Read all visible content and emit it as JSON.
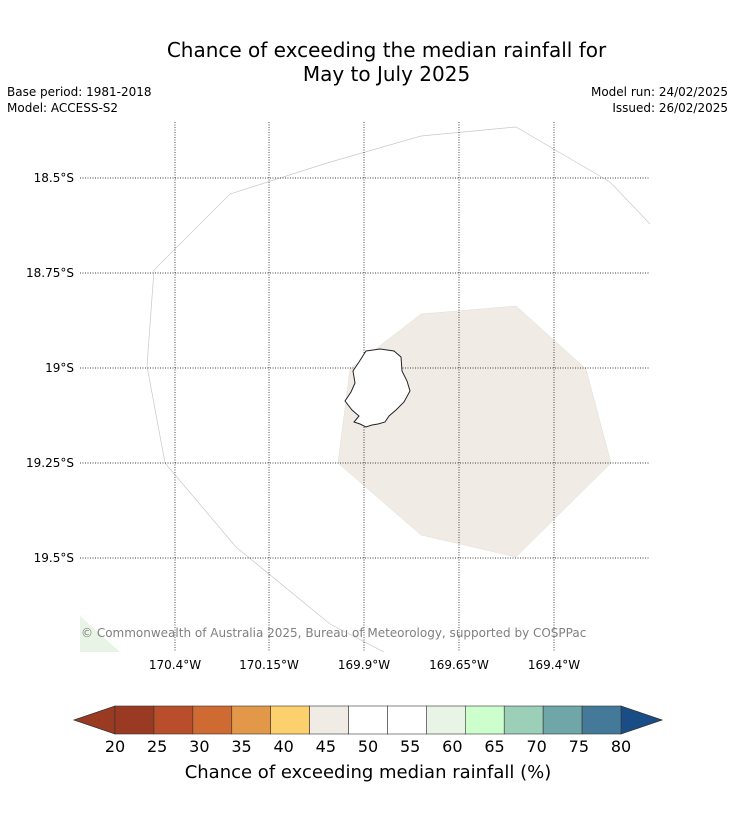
{
  "title_line1": "Chance of exceeding the median rainfall for",
  "title_line2": "May to July 2025",
  "meta_left": {
    "base_period": "Base period: 1981-2018",
    "model": "Model: ACCESS-S2"
  },
  "meta_right": {
    "model_run": "Model run: 24/02/2025",
    "issued": "Issued: 26/02/2025"
  },
  "lat_labels": [
    "18.5°S",
    "18.75°S",
    "19°S",
    "19.25°S",
    "19.5°S"
  ],
  "lon_labels": [
    "170.4°W",
    "170.15°W",
    "169.9°W",
    "169.65°W",
    "169.4°W"
  ],
  "copyright": "© Commonwealth of Australia 2025, Bureau of Meteorology, supported by COSPPac",
  "colorbar": {
    "ticks": [
      "20",
      "25",
      "30",
      "35",
      "40",
      "45",
      "50",
      "55",
      "60",
      "65",
      "70",
      "75",
      "80"
    ],
    "colors": [
      "#9a3a22",
      "#b84e2a",
      "#cf6a33",
      "#e29848",
      "#fdd06e",
      "#f0ebe5",
      "#ffffff",
      "#ffffff",
      "#e8f4e6",
      "#ccffcc",
      "#9ccfb8",
      "#6fa6a8",
      "#44799a"
    ],
    "under_color": "#9a3a22",
    "over_color": "#1a4d86",
    "label": "Chance of exceeding median rainfall (%)"
  },
  "map": {
    "region_fill": "#f0ebe5",
    "corner_fill": "#e8f4e6",
    "region_category": "40–45"
  }
}
